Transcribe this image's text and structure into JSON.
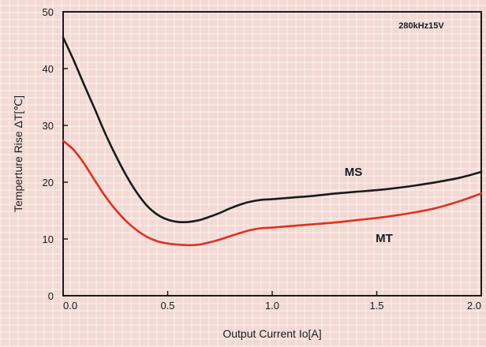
{
  "chart_data": {
    "type": "line",
    "xlabel": "Output Current Io[A]",
    "ylabel": "Temperture Rise ΔT[℃]",
    "xlim": [
      0,
      2.0
    ],
    "ylim": [
      0,
      50
    ],
    "x_ticks": [
      "0.0",
      "0.5",
      "1.0",
      "1.5",
      "2.0"
    ],
    "y_ticks": [
      "0",
      "10",
      "20",
      "30",
      "40",
      "50"
    ],
    "annotation": "280kHz15V",
    "grid": false,
    "series": [
      {
        "name": "MS",
        "color": "#1a1a1a",
        "x": [
          0.0,
          0.05,
          0.1,
          0.15,
          0.2,
          0.25,
          0.3,
          0.35,
          0.4,
          0.45,
          0.5,
          0.55,
          0.6,
          0.65,
          0.7,
          0.75,
          0.8,
          0.85,
          0.9,
          0.95,
          1.0,
          1.1,
          1.2,
          1.3,
          1.4,
          1.5,
          1.6,
          1.7,
          1.8,
          1.9,
          2.0
        ],
        "y": [
          45.5,
          41.5,
          37.2,
          33.0,
          28.7,
          24.8,
          21.3,
          18.3,
          15.9,
          14.3,
          13.4,
          13.0,
          13.0,
          13.3,
          13.9,
          14.6,
          15.4,
          16.1,
          16.6,
          16.9,
          17.0,
          17.3,
          17.6,
          18.0,
          18.3,
          18.6,
          19.0,
          19.5,
          20.1,
          20.8,
          21.8
        ]
      },
      {
        "name": "MT",
        "color": "#e03020",
        "x": [
          0.0,
          0.05,
          0.1,
          0.15,
          0.2,
          0.25,
          0.3,
          0.35,
          0.4,
          0.45,
          0.5,
          0.55,
          0.6,
          0.65,
          0.7,
          0.75,
          0.8,
          0.85,
          0.9,
          0.95,
          1.0,
          1.1,
          1.2,
          1.3,
          1.4,
          1.5,
          1.6,
          1.7,
          1.8,
          1.9,
          2.0
        ],
        "y": [
          27.3,
          25.7,
          23.3,
          20.4,
          17.6,
          15.2,
          13.2,
          11.6,
          10.4,
          9.6,
          9.2,
          9.0,
          8.9,
          9.0,
          9.4,
          9.9,
          10.5,
          11.1,
          11.6,
          11.9,
          12.0,
          12.3,
          12.6,
          12.9,
          13.3,
          13.7,
          14.2,
          14.8,
          15.6,
          16.7,
          18.0
        ]
      }
    ]
  }
}
